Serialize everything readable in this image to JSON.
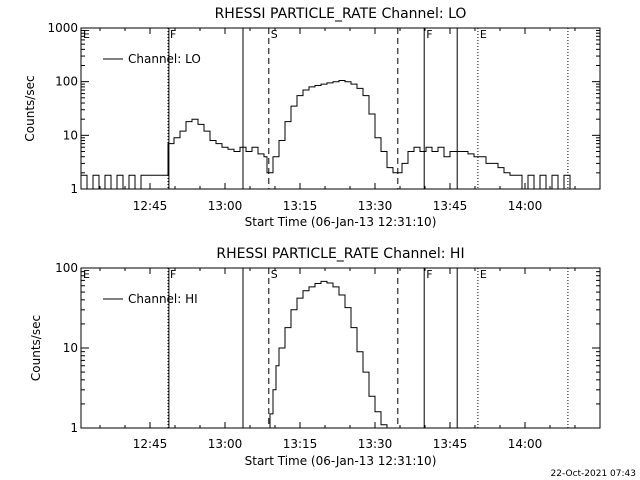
{
  "footer_timestamp": "22-Oct-2021 07:43",
  "chart_data": [
    {
      "type": "line",
      "title": "RHESSI PARTICLE_RATE Channel: LO",
      "xlabel": "Start Time (06-Jan-13 12:31:10)",
      "ylabel": "Counts/sec",
      "yscale": "log",
      "ylim": [
        1,
        1000
      ],
      "xlim": [
        12.52,
        14.25
      ],
      "xticks": [
        12.75,
        13.0,
        13.25,
        13.5,
        13.75,
        14.0
      ],
      "xtick_labels": [
        "12:45",
        "13:00",
        "13:15",
        "13:30",
        "13:45",
        "14:00"
      ],
      "yticks": [
        1,
        10,
        100,
        1000
      ],
      "ytick_labels": [
        "1",
        "10",
        "100",
        "1000"
      ],
      "legend": {
        "label": "Channel: LO",
        "placement": "top-left"
      },
      "markers": [
        {
          "x": 12.52,
          "label": "E",
          "style": "dotted"
        },
        {
          "x": 12.81,
          "label": "F",
          "style": "dotted"
        },
        {
          "x": 12.813,
          "label": "",
          "style": "solid"
        },
        {
          "x": 13.06,
          "label": "",
          "style": "solid"
        },
        {
          "x": 13.146,
          "label": "S",
          "style": "dashed"
        },
        {
          "x": 13.576,
          "label": "",
          "style": "dashed"
        },
        {
          "x": 13.664,
          "label": "F",
          "style": "solid"
        },
        {
          "x": 13.774,
          "label": "",
          "style": "solid"
        },
        {
          "x": 13.843,
          "label": "E",
          "style": "dotted"
        },
        {
          "x": 14.143,
          "label": "",
          "style": "dotted"
        }
      ],
      "series": [
        {
          "name": "Channel: LO",
          "x": [
            12.52,
            12.54,
            12.56,
            12.58,
            12.6,
            12.62,
            12.64,
            12.66,
            12.68,
            12.7,
            12.72,
            12.74,
            12.76,
            12.78,
            12.8,
            12.81,
            12.83,
            12.85,
            12.87,
            12.89,
            12.91,
            12.93,
            12.95,
            12.97,
            12.99,
            13.01,
            13.03,
            13.05,
            13.07,
            13.09,
            13.11,
            13.13,
            13.14,
            13.16,
            13.18,
            13.2,
            13.22,
            13.24,
            13.26,
            13.28,
            13.3,
            13.32,
            13.34,
            13.36,
            13.38,
            13.4,
            13.42,
            13.44,
            13.46,
            13.48,
            13.5,
            13.52,
            13.54,
            13.56,
            13.57,
            13.59,
            13.61,
            13.63,
            13.65,
            13.67,
            13.69,
            13.71,
            13.73,
            13.75,
            13.77,
            13.79,
            13.81,
            13.83,
            13.85,
            13.87,
            13.89,
            13.91,
            13.93,
            13.95,
            13.97,
            13.99,
            14.01,
            14.03,
            14.05,
            14.07,
            14.09,
            14.11,
            14.13,
            14.15,
            14.17,
            14.19,
            14.21,
            14.23,
            14.25
          ],
          "y": [
            1.8,
            1,
            1.8,
            1,
            1.8,
            1,
            1.8,
            1,
            1.8,
            1,
            1.8,
            1.8,
            1.8,
            1.8,
            1.8,
            7,
            9,
            12,
            18,
            20,
            16,
            12,
            8,
            7,
            6,
            5.5,
            5,
            6,
            5,
            6,
            4.5,
            4,
            2,
            4,
            8,
            18,
            35,
            55,
            70,
            80,
            85,
            90,
            95,
            100,
            105,
            100,
            90,
            75,
            55,
            25,
            9,
            5,
            2.5,
            2,
            2,
            3,
            5,
            6,
            5,
            6,
            5,
            6,
            4,
            5,
            5,
            5,
            4.5,
            4,
            4,
            3,
            3,
            2.5,
            2,
            1.8,
            1.8,
            1,
            1.8,
            1,
            1.8,
            1,
            1.8,
            1,
            1.8,
            1,
            1,
            1,
            1,
            1,
            1
          ]
        }
      ]
    },
    {
      "type": "line",
      "title": "RHESSI PARTICLE_RATE Channel: HI",
      "xlabel": "Start Time (06-Jan-13 12:31:10)",
      "ylabel": "Counts/sec",
      "yscale": "log",
      "ylim": [
        1,
        100
      ],
      "xlim": [
        12.52,
        14.25
      ],
      "xticks": [
        12.75,
        13.0,
        13.25,
        13.5,
        13.75,
        14.0
      ],
      "xtick_labels": [
        "12:45",
        "13:00",
        "13:15",
        "13:30",
        "13:45",
        "14:00"
      ],
      "yticks": [
        1,
        10,
        100
      ],
      "ytick_labels": [
        "1",
        "10",
        "100"
      ],
      "legend": {
        "label": "Channel: HI",
        "placement": "top-left"
      },
      "markers": [
        {
          "x": 12.52,
          "label": "E",
          "style": "dotted"
        },
        {
          "x": 12.81,
          "label": "F",
          "style": "dotted"
        },
        {
          "x": 12.813,
          "label": "",
          "style": "solid"
        },
        {
          "x": 13.06,
          "label": "",
          "style": "solid"
        },
        {
          "x": 13.146,
          "label": "S",
          "style": "dashed"
        },
        {
          "x": 13.576,
          "label": "",
          "style": "dashed"
        },
        {
          "x": 13.664,
          "label": "F",
          "style": "solid"
        },
        {
          "x": 13.774,
          "label": "",
          "style": "solid"
        },
        {
          "x": 13.843,
          "label": "E",
          "style": "dotted"
        },
        {
          "x": 14.143,
          "label": "",
          "style": "dotted"
        }
      ],
      "series": [
        {
          "name": "Channel: HI",
          "x": [
            13.14,
            13.15,
            13.16,
            13.17,
            13.18,
            13.2,
            13.22,
            13.24,
            13.26,
            13.28,
            13.3,
            13.32,
            13.34,
            13.36,
            13.38,
            13.4,
            13.42,
            13.44,
            13.46,
            13.48,
            13.5,
            13.52,
            13.54
          ],
          "y": [
            1,
            1.5,
            3,
            6,
            10,
            18,
            30,
            42,
            52,
            58,
            64,
            68,
            65,
            58,
            46,
            32,
            18,
            9,
            5,
            2.5,
            1.6,
            1.1,
            1
          ]
        }
      ]
    }
  ]
}
